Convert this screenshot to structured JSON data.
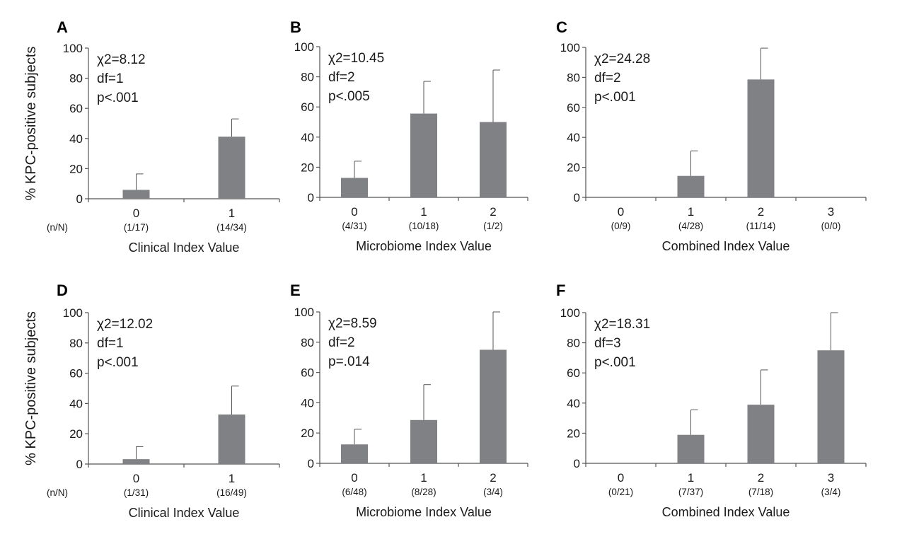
{
  "colors": {
    "bar": "#808184",
    "axis": "#555555",
    "errorbar": "#555555"
  },
  "y_axis_title": "% KPC-positive subjects",
  "nn_label": "(n/N)",
  "chart_data": [
    {
      "panel": "A",
      "type": "bar",
      "categories": [
        "0",
        "1"
      ],
      "counts": [
        "(1/17)",
        "(14/34)"
      ],
      "values": [
        5.9,
        41.2
      ],
      "error_upper": [
        16.5,
        53
      ],
      "xlabel": "Clinical Index Value",
      "ylabel": "% KPC-positive subjects",
      "show_nn": true,
      "ylim": [
        0,
        100
      ],
      "yticks": [
        0,
        20,
        40,
        60,
        80,
        100
      ],
      "stats": [
        "χ2=8.12",
        "df=1",
        "p<.001"
      ]
    },
    {
      "panel": "B",
      "type": "bar",
      "categories": [
        "0",
        "1",
        "2"
      ],
      "counts": [
        "(4/31)",
        "(10/18)",
        "(1/2)"
      ],
      "values": [
        12.9,
        55.6,
        50
      ],
      "error_upper": [
        24,
        77,
        84.5
      ],
      "xlabel": "Microbiome Index Value",
      "ylabel": "",
      "show_nn": false,
      "ylim": [
        0,
        100
      ],
      "yticks": [
        0,
        20,
        40,
        60,
        80,
        100
      ],
      "stats": [
        "χ2=10.45",
        "df=2",
        "p<.005"
      ]
    },
    {
      "panel": "C",
      "type": "bar",
      "categories": [
        "0",
        "1",
        "2",
        "3"
      ],
      "counts": [
        "(0/9)",
        "(4/28)",
        "(11/14)",
        "(0/0)"
      ],
      "values": [
        0,
        14.3,
        78.6,
        0
      ],
      "error_upper": [
        null,
        31,
        99.5,
        null
      ],
      "xlabel": "Combined Index Value",
      "ylabel": "",
      "show_nn": false,
      "ylim": [
        0,
        100
      ],
      "yticks": [
        0,
        20,
        40,
        60,
        80,
        100
      ],
      "stats": [
        "χ2=24.28",
        "df=2",
        "p<.001"
      ]
    },
    {
      "panel": "D",
      "type": "bar",
      "categories": [
        "0",
        "1"
      ],
      "counts": [
        "(1/31)",
        "(16/49)"
      ],
      "values": [
        3.2,
        32.7
      ],
      "error_upper": [
        11.5,
        51.5
      ],
      "xlabel": "Clinical Index Value",
      "ylabel": "% KPC-positive subjects",
      "show_nn": true,
      "ylim": [
        0,
        100
      ],
      "yticks": [
        0,
        20,
        40,
        60,
        80,
        100
      ],
      "stats": [
        "χ2=12.02",
        "df=1",
        "p<.001"
      ]
    },
    {
      "panel": "E",
      "type": "bar",
      "categories": [
        "0",
        "1",
        "2"
      ],
      "counts": [
        "(6/48)",
        "(8/28)",
        "(3/4)"
      ],
      "values": [
        12.5,
        28.6,
        75
      ],
      "error_upper": [
        22.5,
        52,
        100
      ],
      "xlabel": "Microbiome Index Value",
      "ylabel": "",
      "show_nn": false,
      "ylim": [
        0,
        100
      ],
      "yticks": [
        0,
        20,
        40,
        60,
        80,
        100
      ],
      "stats": [
        "χ2=8.59",
        "df=2",
        "p=.014"
      ]
    },
    {
      "panel": "F",
      "type": "bar",
      "categories": [
        "0",
        "1",
        "2",
        "3"
      ],
      "counts": [
        "(0/21)",
        "(7/37)",
        "(7/18)",
        "(3/4)"
      ],
      "values": [
        0,
        18.9,
        38.9,
        75
      ],
      "error_upper": [
        null,
        35.5,
        62,
        100
      ],
      "xlabel": "Combined Index Value",
      "ylabel": "",
      "show_nn": false,
      "ylim": [
        0,
        100
      ],
      "yticks": [
        0,
        20,
        40,
        60,
        80,
        100
      ],
      "stats": [
        "χ2=18.31",
        "df=3",
        "p<.001"
      ]
    }
  ]
}
